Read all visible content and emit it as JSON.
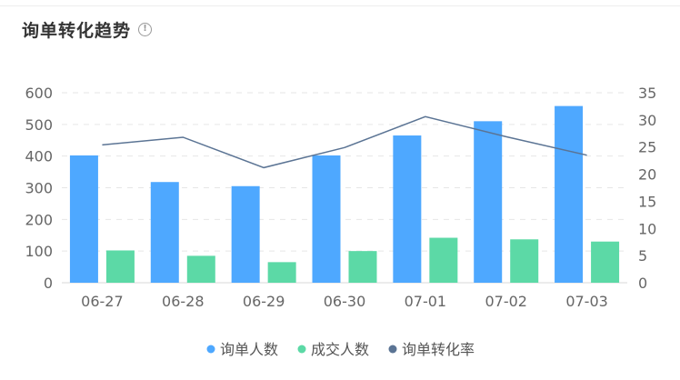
{
  "header": {
    "title": "询单转化趋势",
    "info_icon": "info-circle-icon"
  },
  "chart_data": {
    "type": "bar",
    "categories": [
      "06-27",
      "06-28",
      "06-29",
      "06-30",
      "07-01",
      "07-02",
      "07-03"
    ],
    "series": [
      {
        "name": "询单人数",
        "type": "bar",
        "axis": "left",
        "color": "#4ea8ff",
        "values": [
          402,
          318,
          305,
          402,
          465,
          510,
          558
        ]
      },
      {
        "name": "成交人数",
        "type": "bar",
        "axis": "left",
        "color": "#5cd9a6",
        "values": [
          102,
          85,
          65,
          100,
          142,
          137,
          130
        ]
      },
      {
        "name": "询单转化率",
        "type": "line",
        "axis": "right",
        "color": "#5b7494",
        "values": [
          25.4,
          26.8,
          21.2,
          24.9,
          30.6,
          26.9,
          23.5
        ]
      }
    ],
    "y_left": {
      "min": 0,
      "max": 600,
      "ticks": [
        "0",
        "100",
        "200",
        "300",
        "400",
        "500",
        "600"
      ]
    },
    "y_right": {
      "min": 0,
      "max": 35,
      "ticks": [
        "0",
        "5",
        "10",
        "15",
        "20",
        "25",
        "30",
        "35"
      ]
    },
    "grid": true,
    "legend_position": "bottom-center"
  }
}
